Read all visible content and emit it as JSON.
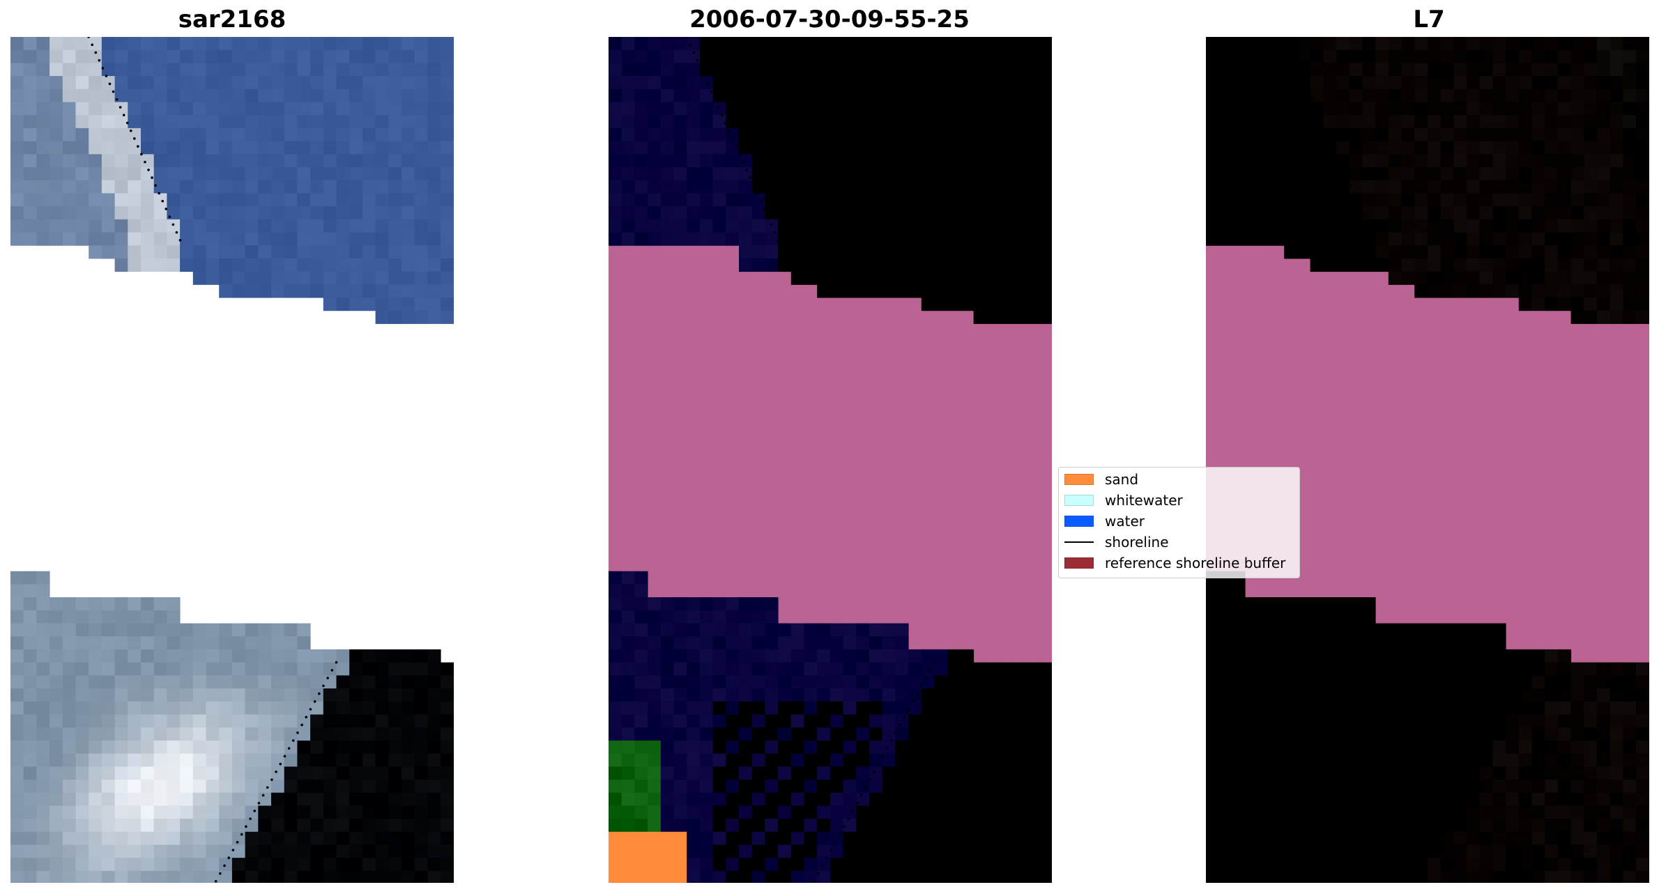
{
  "figure": {
    "panel_titles": [
      "sar2168",
      "2006-07-30-09-55-25",
      "L7"
    ]
  },
  "legend": {
    "items": [
      {
        "label": "sand",
        "color": "#ff8c3a",
        "kind": "patch"
      },
      {
        "label": "whitewater",
        "color": "#c8ffff",
        "kind": "patch"
      },
      {
        "label": "water",
        "color": "#0a5cff",
        "kind": "patch"
      },
      {
        "label": "shoreline",
        "color": "#000000",
        "kind": "line"
      },
      {
        "label": "reference shoreline buffer",
        "color": "#9b2d35",
        "kind": "patch"
      }
    ]
  },
  "colors": {
    "rgb_water": "#3a5a9a",
    "rgb_land": "#7f93a8",
    "rgb_bright": "#eef2f6",
    "nodata_pink": "#bb6494",
    "class_water_purple": "#522597",
    "class_land_maroon": "#7a2c62",
    "class_sand_red": "#b8384a",
    "class_blue": "#0a5cff",
    "ndwi_water_purple": "#7a2aa0",
    "ndwi_land_red": "#c23a6a",
    "ndwi_light_pink": "#f59aa6"
  }
}
